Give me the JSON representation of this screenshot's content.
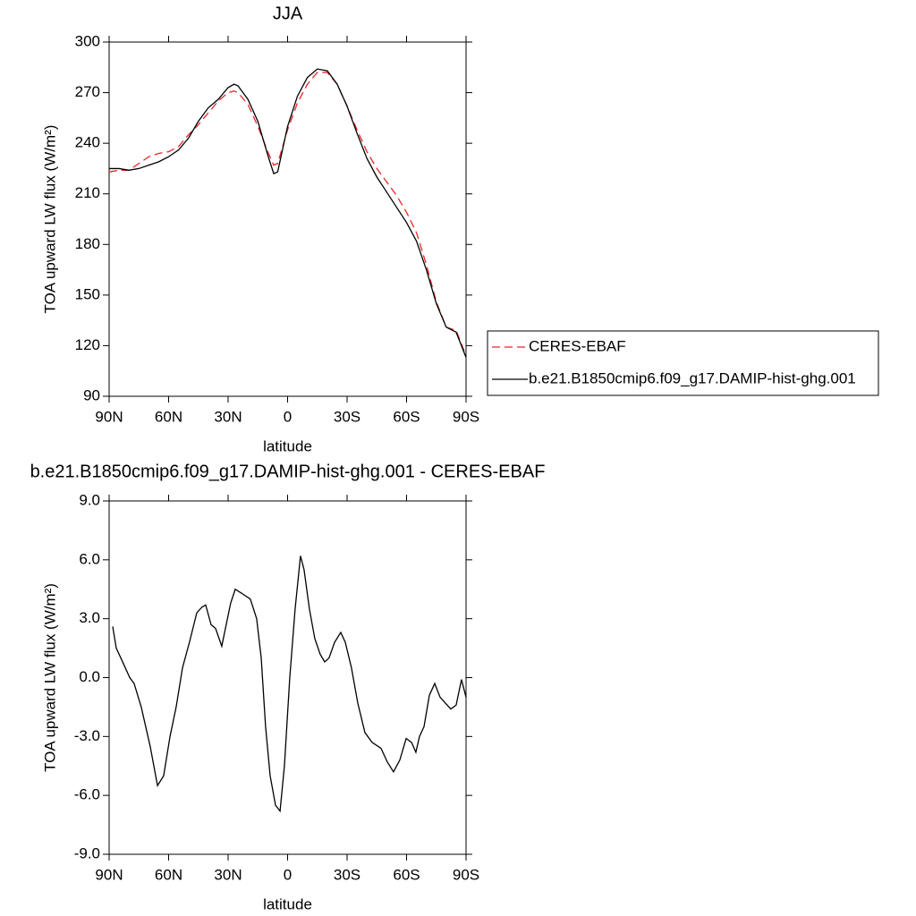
{
  "chart_data": [
    {
      "type": "line",
      "title": "JJA",
      "x_label": "latitude",
      "y_label": "TOA upward LW flux (W/m²)",
      "xlim": [
        90,
        -90
      ],
      "xticks": [
        {
          "value": 90,
          "label": "90N"
        },
        {
          "value": 60,
          "label": "60N"
        },
        {
          "value": 30,
          "label": "30N"
        },
        0,
        {
          "value": -30,
          "label": "30S"
        },
        {
          "value": -60,
          "label": "60S"
        },
        {
          "value": -90,
          "label": "90S"
        }
      ],
      "ylim": [
        90,
        300
      ],
      "yticks": [
        90,
        120,
        150,
        180,
        210,
        240,
        270,
        300
      ],
      "legend": "right",
      "x": [
        90,
        85,
        80,
        75,
        70,
        65,
        60,
        55,
        50,
        45,
        40,
        35,
        30,
        27,
        25,
        20,
        15,
        10,
        7,
        5,
        0,
        -5,
        -10,
        -15,
        -20,
        -25,
        -30,
        -35,
        -40,
        -45,
        -50,
        -55,
        -60,
        -65,
        -70,
        -75,
        -80,
        -85,
        -90
      ],
      "series": [
        {
          "name": "CERES-EBAF",
          "color": "#e8262a",
          "dash": "dashed",
          "values": [
            223,
            224,
            224,
            228,
            232,
            234,
            235,
            238,
            245,
            251,
            258,
            265,
            270,
            271,
            270,
            263,
            250,
            235,
            227,
            228,
            248,
            264,
            275,
            282,
            282,
            275,
            262,
            248,
            235,
            225,
            217,
            209,
            199,
            187,
            168,
            146,
            131,
            129,
            114
          ]
        },
        {
          "name": "b.e21.B1850cmip6.f09_g17.DAMIP-hist-ghg.001",
          "color": "#000000",
          "dash": "solid",
          "values": [
            225,
            225,
            224,
            225,
            227,
            229,
            232,
            236,
            243,
            253,
            261,
            266,
            273,
            275,
            274,
            266,
            253,
            233,
            222,
            223,
            250,
            268,
            279,
            284,
            283,
            275,
            262,
            246,
            231,
            220,
            211,
            202,
            193,
            182,
            165,
            145,
            131,
            128,
            113
          ]
        }
      ]
    },
    {
      "type": "line",
      "title": "b.e21.B1850cmip6.f09_g17.DAMIP-hist-ghg.001 - CERES-EBAF",
      "x_label": "latitude",
      "y_label": "TOA upward LW flux (W/m²)",
      "xlim": [
        90,
        -90
      ],
      "xticks": [
        {
          "value": 90,
          "label": "90N"
        },
        {
          "value": 60,
          "label": "60N"
        },
        {
          "value": 30,
          "label": "30N"
        },
        0,
        {
          "value": -30,
          "label": "30S"
        },
        {
          "value": -60,
          "label": "60S"
        },
        {
          "value": -90,
          "label": "90S"
        }
      ],
      "ylim": [
        -9,
        9
      ],
      "yticks": [
        {
          "value": -9,
          "label": "-9.0"
        },
        {
          "value": -6,
          "label": "-6.0"
        },
        {
          "value": -3,
          "label": "-3.0"
        },
        {
          "value": 0,
          "label": "0.0"
        },
        {
          "value": 3,
          "label": "3.0"
        },
        {
          "value": 6,
          "label": "6.0"
        },
        {
          "value": 9,
          "label": "9.0"
        }
      ],
      "color": "#000000",
      "x": [
        88.2,
        86.4,
        83.2,
        79.6,
        77.4,
        73.8,
        69.3,
        65.6,
        62.5,
        59.3,
        56.2,
        53,
        49.5,
        45.8,
        43.1,
        41.3,
        38.6,
        36.3,
        33.2,
        28.7,
        26.4,
        23.2,
        18.8,
        15.6,
        13.3,
        11.1,
        8.8,
        6.1,
        3.8,
        1.6,
        -1.1,
        -3.8,
        -6.5,
        -8.3,
        -11,
        -13.7,
        -16.4,
        -18.7,
        -20.9,
        -23.7,
        -26.8,
        -29.1,
        -32.2,
        -35.4,
        -39,
        -42.6,
        -47.1,
        -50.3,
        -53.4,
        -56.6,
        -59.8,
        -62.5,
        -64.7,
        -66.5,
        -68.8,
        -71.5,
        -74.2,
        -76.9,
        -79.6,
        -82.3,
        -85,
        -87.7,
        -90
      ],
      "values": [
        2.6,
        1.5,
        0.8,
        0,
        -0.3,
        -1.5,
        -3.5,
        -5.5,
        -5,
        -3,
        -1.5,
        0.5,
        1.8,
        3.3,
        3.6,
        3.7,
        2.7,
        2.5,
        1.6,
        3.8,
        4.5,
        4.3,
        4,
        3,
        1,
        -2.5,
        -5,
        -6.5,
        -6.8,
        -4.5,
        0,
        3.5,
        6.2,
        5.5,
        3.5,
        2,
        1.2,
        0.8,
        1,
        1.8,
        2.3,
        1.8,
        0.5,
        -1.3,
        -2.8,
        -3.3,
        -3.6,
        -4.3,
        -4.8,
        -4.2,
        -3.1,
        -3.3,
        -3.8,
        -3,
        -2.5,
        -0.9,
        -0.3,
        -1,
        -1.3,
        -1.6,
        -1.4,
        -0.1,
        -1
      ]
    }
  ]
}
